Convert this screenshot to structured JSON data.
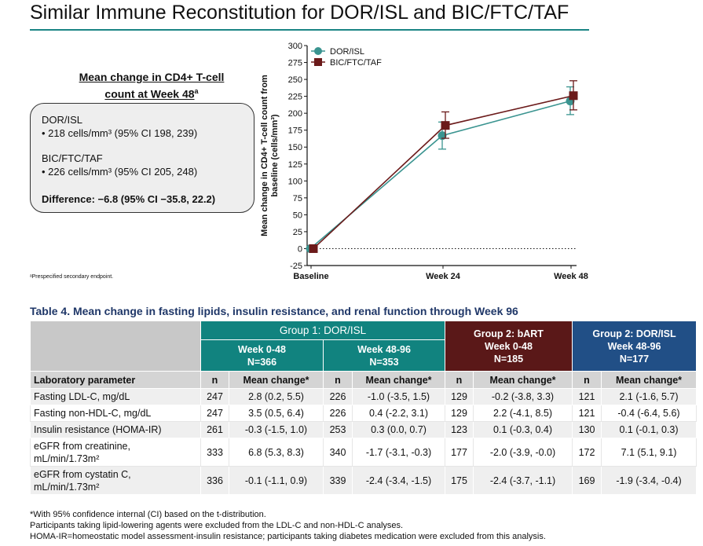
{
  "title": "Similar Immune Reconstitution for DOR/ISL and BIC/FTC/TAF",
  "summary": {
    "heading_line1": "Mean change in CD4+ T-cell",
    "heading_line2": "count at Week 48",
    "heading_marker": "a",
    "groups": [
      {
        "name": "DOR/ISL",
        "value": "• 218 cells/mm³ (95% CI 198, 239)"
      },
      {
        "name": "BIC/FTC/TAF",
        "value": "• 226 cells/mm³ (95% CI 205, 248)"
      }
    ],
    "difference": "Difference: −6.8 (95% CI −35.8, 22.2)"
  },
  "chart_footnote": "ᵃPrespecified secondary endpoint.",
  "chart_data": {
    "type": "line",
    "categories": [
      "Baseline",
      "Week 24",
      "Week 48"
    ],
    "ylabel": "Mean change in CD4+ T-cell count from baseline (cells/mm³)",
    "ylim": [
      -25,
      300
    ],
    "yticks": [
      -25,
      0,
      25,
      50,
      75,
      100,
      125,
      150,
      175,
      200,
      225,
      250,
      275,
      300
    ],
    "reference_line": 0,
    "legend_position": "top-left",
    "series": [
      {
        "name": "DOR/ISL",
        "color": "#3a9490",
        "marker": "circle",
        "values": [
          0,
          167,
          218
        ],
        "err_low": [
          0,
          147,
          198
        ],
        "err_high": [
          0,
          187,
          239
        ]
      },
      {
        "name": "BIC/FTC/TAF",
        "color": "#6b1a1a",
        "marker": "square",
        "values": [
          0,
          182,
          226
        ],
        "err_low": [
          0,
          163,
          205
        ],
        "err_high": [
          0,
          202,
          248
        ]
      }
    ]
  },
  "table": {
    "caption": "Table 4. Mean change in fasting lipids, insulin resistance, and renal function through Week 96",
    "group_headers": [
      "Group 1: DOR/ISL",
      "Group 2: bART\nWeek 0-48\nN=185",
      "Group 2: DOR/ISL\nWeek 48-96\nN=177"
    ],
    "sub_headers": [
      "Week 0-48\nN=366",
      "Week 48-96\nN=353"
    ],
    "column_headers": [
      "Laboratory parameter",
      "n",
      "Mean change*",
      "n",
      "Mean change*",
      "n",
      "Mean change*",
      "n",
      "Mean change*"
    ],
    "rows": [
      [
        "Fasting LDL-C, mg/dL",
        "247",
        "2.8 (0.2, 5.5)",
        "226",
        "-1.0 (-3.5, 1.5)",
        "129",
        "-0.2 (-3.8, 3.3)",
        "121",
        "2.1 (-1.6, 5.7)"
      ],
      [
        "Fasting non-HDL-C, mg/dL",
        "247",
        "3.5 (0.5, 6.4)",
        "226",
        "0.4 (-2.2, 3.1)",
        "129",
        "2.2 (-4.1, 8.5)",
        "121",
        "-0.4 (-6.4, 5.6)"
      ],
      [
        "Insulin resistance (HOMA-IR)",
        "261",
        "-0.3 (-1.5, 1.0)",
        "253",
        "0.3 (0.0, 0.7)",
        "123",
        "0.1 (-0.3, 0.4)",
        "130",
        "0.1 (-0.1, 0.3)"
      ],
      [
        "eGFR from creatinine,\nmL/min/1.73m²",
        "333",
        "6.8 (5.3, 8.3)",
        "340",
        "-1.7 (-3.1, -0.3)",
        "177",
        "-2.0 (-3.9, -0.0)",
        "172",
        "7.1 (5.1, 9.1)"
      ],
      [
        "eGFR from cystatin C,\nmL/min/1.73m²",
        "336",
        "-0.1 (-1.1, 0.9)",
        "339",
        "-2.4 (-3.4, -1.5)",
        "175",
        "-2.4 (-3.7, -1.1)",
        "169",
        "-1.9 (-3.4, -0.4)"
      ]
    ],
    "footnotes": [
      "*With 95% confidence internal (CI) based on the t-distribution.",
      "Participants taking lipid-lowering agents were excluded from the LDL-C and non-HDL-C analyses.",
      "HOMA-IR=homeostatic model assessment-insulin resistance; participants taking diabetes medication were excluded from this analysis."
    ]
  },
  "colors": {
    "teal": "#11837f",
    "maroon": "#5a1818",
    "navy": "#214f86",
    "accent": "#1b8585"
  }
}
